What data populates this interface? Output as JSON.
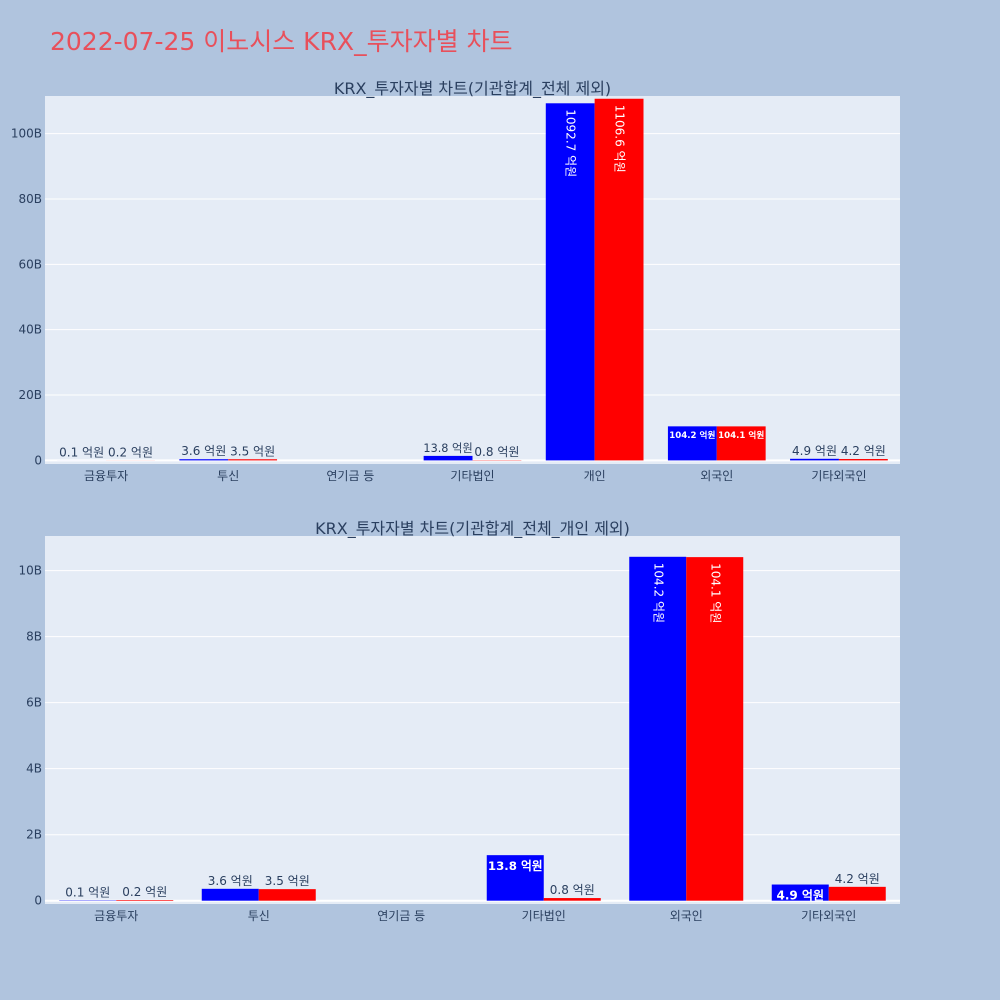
{
  "page": {
    "title": "2022-07-25 이노시스 KRX_투자자별 차트"
  },
  "colors": {
    "page_background": "#b0c4de",
    "plot_background": "#e5ecf6",
    "title": "#e8505b",
    "text": "#2a3f5f",
    "series_a": "#0000ff",
    "series_b": "#ff0000"
  },
  "chart_data": [
    {
      "type": "bar",
      "title": "KRX_투자자별 차트(기관합계_전체 제외)",
      "categories": [
        "금융투자",
        "투신",
        "연기금 등",
        "기타법인",
        "개인",
        "외국인",
        "기타외국인"
      ],
      "series": [
        {
          "color": "#0000ff",
          "values": [
            10000000,
            360000000,
            0,
            1380000000,
            109270000000,
            10420000000,
            490000000
          ],
          "labels": [
            "0.1 억원",
            "3.6 억원",
            "",
            "13.8 억원",
            "1092.7 억원",
            "104.2 억원",
            "4.9 억원"
          ]
        },
        {
          "color": "#ff0000",
          "values": [
            20000000,
            350000000,
            0,
            80000000,
            110660000000,
            10410000000,
            420000000
          ],
          "labels": [
            "0.2 억원",
            "3.5 억원",
            "",
            "0.8 억원",
            "1106.6 억원",
            "104.1 억원",
            "4.2 억원"
          ]
        }
      ],
      "yticks": [
        0,
        20000000000,
        40000000000,
        60000000000,
        80000000000,
        100000000000
      ],
      "ytick_labels": [
        "0",
        "20B",
        "40B",
        "60B",
        "80B",
        "100B"
      ],
      "ylim": [
        -1100000000,
        111500000000
      ],
      "grid": true,
      "legend": "none"
    },
    {
      "type": "bar",
      "title": "KRX_투자자별 차트(기관합계_전체_개인 제외)",
      "categories": [
        "금융투자",
        "투신",
        "연기금 등",
        "기타법인",
        "외국인",
        "기타외국인"
      ],
      "series": [
        {
          "color": "#0000ff",
          "values": [
            10000000,
            360000000,
            0,
            1380000000,
            10420000000,
            490000000
          ],
          "labels": [
            "0.1 억원",
            "3.6 억원",
            "",
            "13.8 억원",
            "104.2 억원",
            "4.9 억원"
          ]
        },
        {
          "color": "#ff0000",
          "values": [
            20000000,
            350000000,
            0,
            80000000,
            10410000000,
            420000000
          ],
          "labels": [
            "0.2 억원",
            "3.5 억원",
            "",
            "0.8 억원",
            "104.1 억원",
            "4.2 억원"
          ]
        }
      ],
      "yticks": [
        0,
        2000000000,
        4000000000,
        6000000000,
        8000000000,
        10000000000
      ],
      "ytick_labels": [
        "0",
        "2B",
        "4B",
        "6B",
        "8B",
        "10B"
      ],
      "ylim": [
        -100000000,
        11050000000
      ],
      "grid": true,
      "legend": "none"
    }
  ]
}
